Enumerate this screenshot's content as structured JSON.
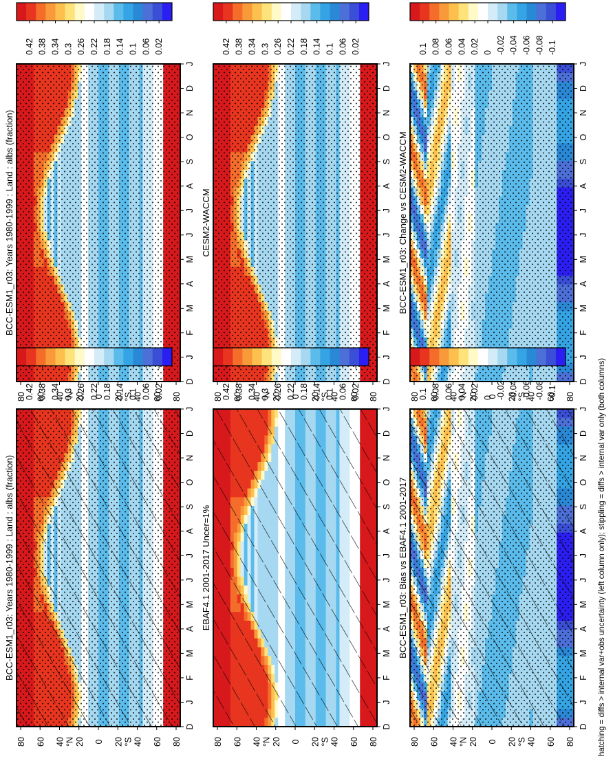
{
  "footnote": "hatching = diffs > internal var+obs uncertainty (left column only); stippling = diffs > internal var only (both columns)",
  "chart_data": [
    {
      "type": "heatmap",
      "title": "BCC-ESM1_r03: Years 1980-1999 : Land : albs (fraction)",
      "x_tick_labels": [
        "D",
        "J",
        "F",
        "M",
        "A",
        "M",
        "J",
        "J",
        "A",
        "S",
        "O",
        "N",
        "D",
        "J"
      ],
      "y_tick_labels": [
        "80",
        "60",
        "40",
        "20",
        "0",
        "20",
        "40",
        "60",
        "80"
      ],
      "y_axis_suffix_north": "N",
      "y_axis_suffix_south": "S",
      "colorbar_labels": [
        "0.42",
        "0.38",
        "0.34",
        "0.3",
        "0.26",
        "0.22",
        "0.18",
        "0.14",
        "0.1",
        "0.06",
        "0.02"
      ],
      "colorbar_colors": [
        "#d7191c",
        "#e8351f",
        "#f46d2a",
        "#f99a3a",
        "#fdc04f",
        "#fee27a",
        "#fffac8",
        "#ffffff",
        "#d3ecf8",
        "#a6d9f1",
        "#5bbcec",
        "#34a4e4",
        "#2a89d6",
        "#4d6fd8",
        "#3b4fd6",
        "#2b1ef2"
      ],
      "hatching": true,
      "stippling": true,
      "field": "albedo"
    },
    {
      "type": "heatmap",
      "title": "BCC-ESM1_r03: Years 1980-1999 : Land : albs (fraction)",
      "x_tick_labels": [
        "D",
        "J",
        "F",
        "M",
        "A",
        "M",
        "J",
        "J",
        "A",
        "S",
        "O",
        "N",
        "D",
        "J"
      ],
      "y_tick_labels": [
        "80",
        "60",
        "40",
        "20",
        "0",
        "20",
        "40",
        "60",
        "80"
      ],
      "y_axis_suffix_north": "N",
      "y_axis_suffix_south": "S",
      "colorbar_labels": [
        "0.42",
        "0.38",
        "0.34",
        "0.3",
        "0.26",
        "0.22",
        "0.18",
        "0.14",
        "0.1",
        "0.06",
        "0.02"
      ],
      "colorbar_colors": [
        "#d7191c",
        "#e8351f",
        "#f46d2a",
        "#f99a3a",
        "#fdc04f",
        "#fee27a",
        "#fffac8",
        "#ffffff",
        "#d3ecf8",
        "#a6d9f1",
        "#5bbcec",
        "#34a4e4",
        "#2a89d6",
        "#4d6fd8",
        "#3b4fd6",
        "#2b1ef2"
      ],
      "hatching": false,
      "stippling": true,
      "field": "albedo"
    },
    {
      "type": "heatmap",
      "title": "EBAF4.1 2001-2017 Uncer=1%",
      "x_tick_labels": [
        "D",
        "J",
        "F",
        "M",
        "A",
        "M",
        "J",
        "J",
        "A",
        "S",
        "O",
        "N",
        "D",
        "J"
      ],
      "y_tick_labels": [
        "80",
        "60",
        "40",
        "20",
        "0",
        "20",
        "40",
        "60",
        "80"
      ],
      "y_axis_suffix_north": "N",
      "y_axis_suffix_south": "S",
      "colorbar_labels": [
        "0.42",
        "0.38",
        "0.34",
        "0.3",
        "0.26",
        "0.22",
        "0.18",
        "0.14",
        "0.1",
        "0.06",
        "0.02"
      ],
      "colorbar_colors": [
        "#d7191c",
        "#e8351f",
        "#f46d2a",
        "#f99a3a",
        "#fdc04f",
        "#fee27a",
        "#fffac8",
        "#ffffff",
        "#d3ecf8",
        "#a6d9f1",
        "#5bbcec",
        "#34a4e4",
        "#2a89d6",
        "#4d6fd8",
        "#3b4fd6",
        "#2b1ef2"
      ],
      "hatching": true,
      "stippling": false,
      "field": "albedo"
    },
    {
      "type": "heatmap",
      "title": "CESM2-WACCM",
      "x_tick_labels": [
        "D",
        "J",
        "F",
        "M",
        "A",
        "M",
        "J",
        "J",
        "A",
        "S",
        "O",
        "N",
        "D",
        "J"
      ],
      "y_tick_labels": [
        "80",
        "60",
        "40",
        "20",
        "0",
        "20",
        "40",
        "60",
        "80"
      ],
      "y_axis_suffix_north": "N",
      "y_axis_suffix_south": "S",
      "colorbar_labels": [
        "0.42",
        "0.38",
        "0.34",
        "0.3",
        "0.26",
        "0.22",
        "0.18",
        "0.14",
        "0.1",
        "0.06",
        "0.02"
      ],
      "colorbar_colors": [
        "#d7191c",
        "#e8351f",
        "#f46d2a",
        "#f99a3a",
        "#fdc04f",
        "#fee27a",
        "#fffac8",
        "#ffffff",
        "#d3ecf8",
        "#a6d9f1",
        "#5bbcec",
        "#34a4e4",
        "#2a89d6",
        "#4d6fd8",
        "#3b4fd6",
        "#2b1ef2"
      ],
      "hatching": false,
      "stippling": true,
      "field": "albedo"
    },
    {
      "type": "heatmap",
      "title": "BCC-ESM1_r03: Bias vs EBAF4.1 2001-2017",
      "x_tick_labels": [
        "D",
        "J",
        "F",
        "M",
        "A",
        "M",
        "J",
        "J",
        "A",
        "S",
        "O",
        "N",
        "D",
        "J"
      ],
      "y_tick_labels": [
        "80",
        "60",
        "40",
        "20",
        "0",
        "20",
        "40",
        "60",
        "80"
      ],
      "y_axis_suffix_north": "N",
      "y_axis_suffix_south": "S",
      "colorbar_labels": [
        "0.1",
        "0.08",
        "0.06",
        "0.04",
        "0.02",
        "0",
        "-0.02",
        "-0.04",
        "-0.06",
        "-0.08",
        "-0.1"
      ],
      "colorbar_colors": [
        "#d7191c",
        "#e8351f",
        "#f46d2a",
        "#f99a3a",
        "#fdc04f",
        "#fee27a",
        "#fffac8",
        "#ffffff",
        "#d3ecf8",
        "#a6d9f1",
        "#5bbcec",
        "#34a4e4",
        "#2a89d6",
        "#4d6fd8",
        "#3b4fd6",
        "#2b1ef2"
      ],
      "hatching": true,
      "stippling": true,
      "field": "diff"
    },
    {
      "type": "heatmap",
      "title": "BCC-ESM1_r03: Change vs CESM2-WACCM",
      "x_tick_labels": [
        "D",
        "J",
        "F",
        "M",
        "A",
        "M",
        "J",
        "J",
        "A",
        "S",
        "O",
        "N",
        "D",
        "J"
      ],
      "y_tick_labels": [
        "80",
        "60",
        "40",
        "20",
        "0",
        "20",
        "40",
        "60",
        "80"
      ],
      "y_axis_suffix_north": "N",
      "y_axis_suffix_south": "S",
      "colorbar_labels": [
        "0.1",
        "0.08",
        "0.06",
        "0.04",
        "0.02",
        "0",
        "-0.02",
        "-0.04",
        "-0.06",
        "-0.08",
        "-0.1"
      ],
      "colorbar_colors": [
        "#d7191c",
        "#e8351f",
        "#f46d2a",
        "#f99a3a",
        "#fdc04f",
        "#fee27a",
        "#fffac8",
        "#ffffff",
        "#d3ecf8",
        "#a6d9f1",
        "#5bbcec",
        "#34a4e4",
        "#2a89d6",
        "#4d6fd8",
        "#3b4fd6",
        "#2b1ef2"
      ],
      "hatching": false,
      "stippling": true,
      "field": "diff"
    }
  ]
}
